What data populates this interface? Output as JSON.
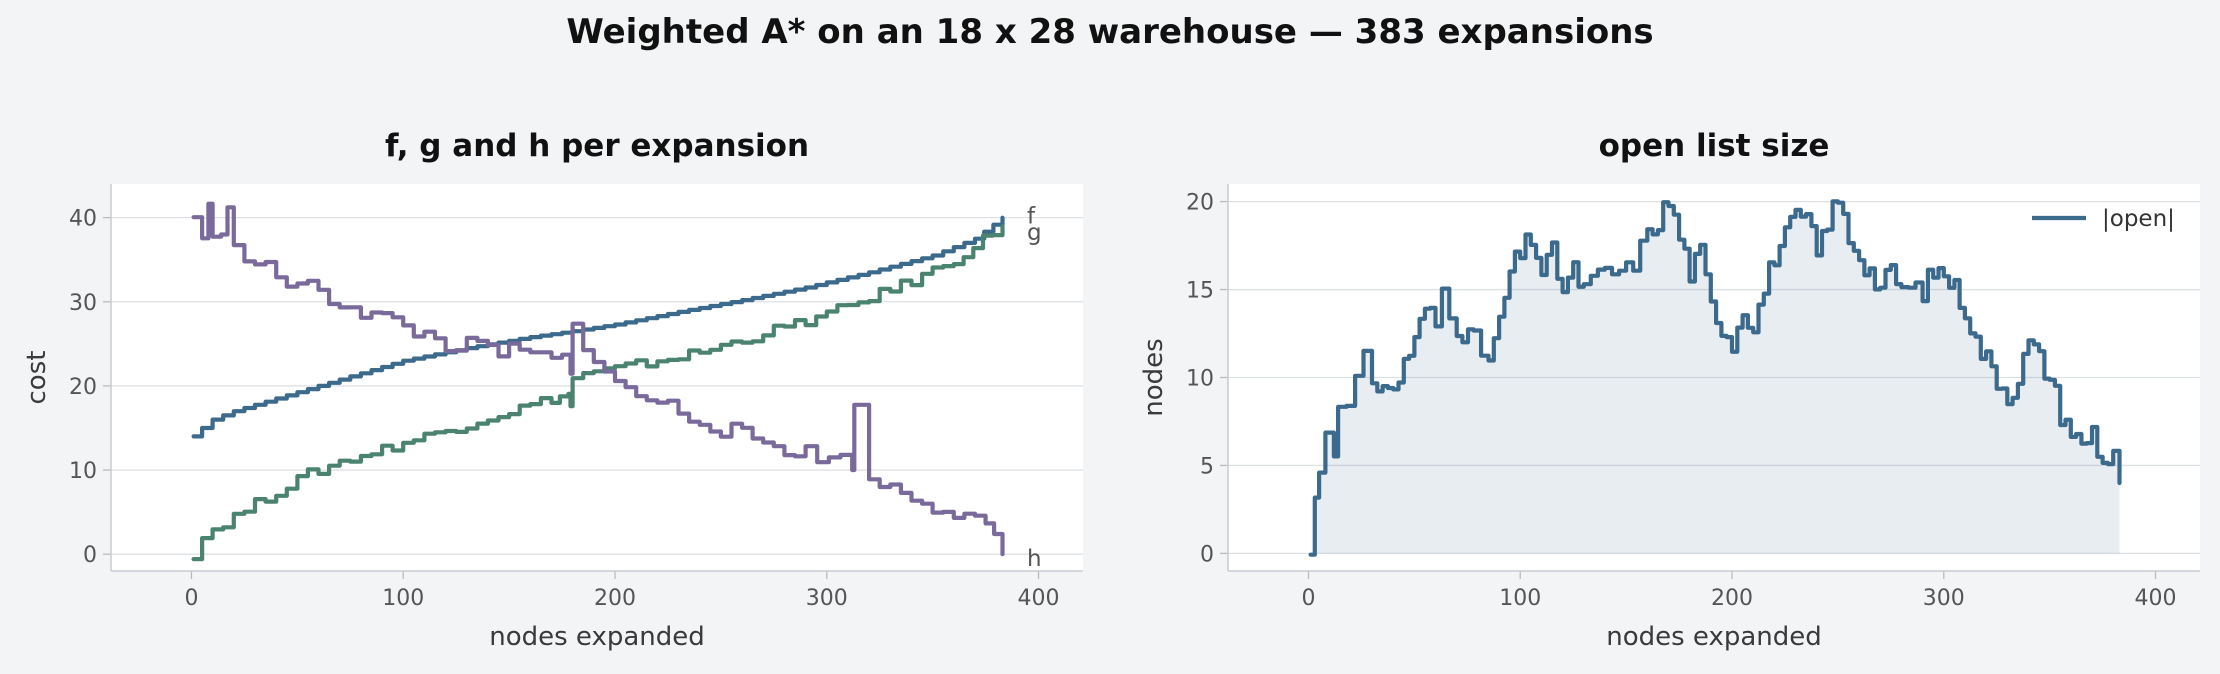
{
  "figure": {
    "title": "Weighted A* on an 18 x 28 warehouse — 383 expansions"
  },
  "colors": {
    "background": "#f2f4f6",
    "panel": "#ffffff",
    "f": "#3b6a8c",
    "g": "#4a8470",
    "h": "#7a6a9c",
    "open": "#3b6a8c",
    "grid": "#dde1e5"
  },
  "chart_data": [
    {
      "type": "line",
      "title": "f, g and h per expansion",
      "xlabel": "nodes expanded",
      "ylabel": "cost",
      "xlim": [
        -38,
        421
      ],
      "ylim": [
        -2,
        44
      ],
      "xticks": [
        0,
        100,
        200,
        300,
        400
      ],
      "yticks": [
        0,
        10,
        20,
        30,
        40
      ],
      "grid": "horizontal",
      "end_labels": [
        "f",
        "g",
        "h"
      ],
      "series": [
        {
          "name": "f",
          "color": "#3b6a8c",
          "points": [
            [
              1,
              14
            ],
            [
              5,
              15
            ],
            [
              10,
              16
            ],
            [
              20,
              17
            ],
            [
              40,
              18.5
            ],
            [
              60,
              20
            ],
            [
              80,
              21.5
            ],
            [
              100,
              23
            ],
            [
              130,
              24.5
            ],
            [
              160,
              25.8
            ],
            [
              180,
              26.5
            ],
            [
              200,
              27.3
            ],
            [
              230,
              28.8
            ],
            [
              260,
              30.2
            ],
            [
              290,
              31.7
            ],
            [
              320,
              33.5
            ],
            [
              350,
              35.5
            ],
            [
              370,
              37.5
            ],
            [
              383,
              40
            ]
          ]
        },
        {
          "name": "g",
          "color": "#4a8470",
          "points": [
            [
              1,
              0
            ],
            [
              5,
              2
            ],
            [
              10,
              3
            ],
            [
              20,
              4.5
            ],
            [
              30,
              6
            ],
            [
              40,
              7.5
            ],
            [
              55,
              9.5
            ],
            [
              70,
              11
            ],
            [
              90,
              12.5
            ],
            [
              110,
              14
            ],
            [
              130,
              15.5
            ],
            [
              150,
              17
            ],
            [
              170,
              18.5
            ],
            [
              178,
              19
            ],
            [
              179,
              17.5
            ],
            [
              180,
              21
            ],
            [
              200,
              22
            ],
            [
              220,
              23
            ],
            [
              240,
              24
            ],
            [
              260,
              25.5
            ],
            [
              280,
              27
            ],
            [
              300,
              28.5
            ],
            [
              320,
              30.5
            ],
            [
              340,
              32.5
            ],
            [
              360,
              35
            ],
            [
              383,
              39
            ]
          ]
        },
        {
          "name": "h",
          "color": "#7a6a9c",
          "points": [
            [
              1,
              40
            ],
            [
              5,
              38
            ],
            [
              8,
              41
            ],
            [
              10,
              37
            ],
            [
              14,
              39
            ],
            [
              17,
              42
            ],
            [
              20,
              36
            ],
            [
              40,
              33
            ],
            [
              60,
              31
            ],
            [
              80,
              29
            ],
            [
              100,
              27
            ],
            [
              120,
              25
            ],
            [
              150,
              24
            ],
            [
              175,
              23
            ],
            [
              179,
              21
            ],
            [
              180,
              27
            ],
            [
              200,
              20
            ],
            [
              230,
              17
            ],
            [
              260,
              14
            ],
            [
              290,
              12
            ],
            [
              312,
              11
            ],
            [
              313,
              17
            ],
            [
              320,
              9
            ],
            [
              340,
              7
            ],
            [
              360,
              5
            ],
            [
              375,
              3
            ],
            [
              383,
              0
            ]
          ]
        }
      ]
    },
    {
      "type": "area",
      "title": "open list size",
      "xlabel": "nodes expanded",
      "ylabel": "nodes",
      "xlim": [
        -38,
        421
      ],
      "ylim": [
        -1,
        21
      ],
      "xticks": [
        0,
        100,
        200,
        300,
        400
      ],
      "yticks": [
        0,
        5,
        10,
        15,
        20
      ],
      "grid": "horizontal",
      "legend": "top-right",
      "series": [
        {
          "name": "|open|",
          "color": "#3b6a8c",
          "points": [
            [
              1,
              0
            ],
            [
              3,
              3
            ],
            [
              5,
              5
            ],
            [
              8,
              7
            ],
            [
              12,
              6
            ],
            [
              14,
              9
            ],
            [
              18,
              8
            ],
            [
              22,
              10
            ],
            [
              26,
              11
            ],
            [
              30,
              9
            ],
            [
              35,
              10
            ],
            [
              40,
              9
            ],
            [
              45,
              11
            ],
            [
              50,
              12
            ],
            [
              55,
              14
            ],
            [
              60,
              13
            ],
            [
              63,
              15
            ],
            [
              70,
              13
            ],
            [
              78,
              12
            ],
            [
              85,
              11
            ],
            [
              90,
              13
            ],
            [
              95,
              16
            ],
            [
              100,
              17
            ],
            [
              105,
              18
            ],
            [
              110,
              16
            ],
            [
              115,
              17
            ],
            [
              120,
              15
            ],
            [
              125,
              16
            ],
            [
              130,
              15
            ],
            [
              140,
              16
            ],
            [
              150,
              16
            ],
            [
              160,
              18
            ],
            [
              165,
              19
            ],
            [
              170,
              20
            ],
            [
              175,
              18
            ],
            [
              180,
              16
            ],
            [
              185,
              17
            ],
            [
              190,
              14
            ],
            [
              195,
              13
            ],
            [
              200,
              12
            ],
            [
              205,
              14
            ],
            [
              210,
              13
            ],
            [
              215,
              15
            ],
            [
              220,
              17
            ],
            [
              225,
              18
            ],
            [
              230,
              19
            ],
            [
              235,
              19
            ],
            [
              240,
              17
            ],
            [
              245,
              19
            ],
            [
              250,
              20
            ],
            [
              255,
              18
            ],
            [
              260,
              17
            ],
            [
              265,
              16
            ],
            [
              270,
              15
            ],
            [
              275,
              16
            ],
            [
              280,
              15
            ],
            [
              290,
              15
            ],
            [
              295,
              16
            ],
            [
              300,
              16
            ],
            [
              305,
              15
            ],
            [
              310,
              14
            ],
            [
              315,
              12
            ],
            [
              320,
              11
            ],
            [
              325,
              10
            ],
            [
              330,
              9
            ],
            [
              335,
              10
            ],
            [
              340,
              12
            ],
            [
              345,
              11
            ],
            [
              350,
              10
            ],
            [
              355,
              8
            ],
            [
              360,
              7
            ],
            [
              365,
              6
            ],
            [
              370,
              7
            ],
            [
              375,
              5
            ],
            [
              380,
              6
            ],
            [
              383,
              4
            ]
          ]
        }
      ]
    }
  ]
}
